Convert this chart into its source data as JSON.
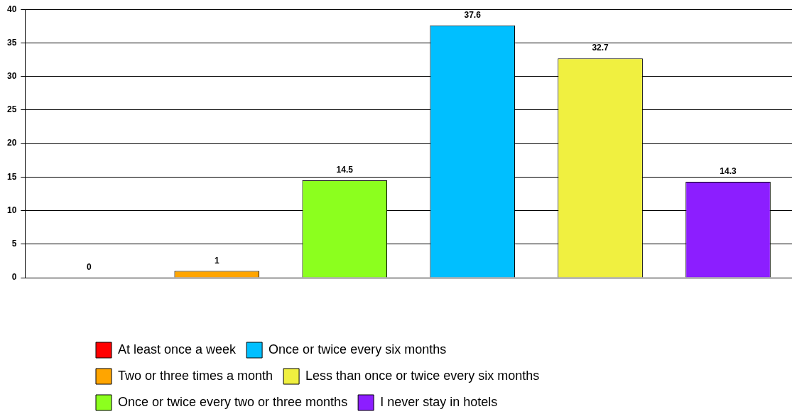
{
  "chart_data": {
    "type": "bar",
    "categories": [
      null,
      null,
      null,
      null,
      null,
      null
    ],
    "series": [
      {
        "name": "At least once a week",
        "color": "#ff0000",
        "values": [
          0,
          null,
          null,
          null,
          null,
          null
        ]
      },
      {
        "name": "Two or three times a month",
        "color": "#ffa500",
        "values": [
          null,
          1,
          null,
          null,
          null,
          null
        ]
      },
      {
        "name": "Once or twice every two or three months",
        "color": "#8cff1e",
        "values": [
          null,
          null,
          14.5,
          null,
          null,
          null
        ]
      },
      {
        "name": "Once or twice every six months",
        "color": "#00bfff",
        "values": [
          null,
          null,
          null,
          37.6,
          null,
          null
        ]
      },
      {
        "name": "Less than once or twice every six months",
        "color": "#f0f040",
        "values": [
          null,
          null,
          null,
          null,
          32.7,
          null
        ]
      },
      {
        "name": "I never stay in hotels",
        "color": "#8c1eff",
        "values": [
          null,
          null,
          null,
          null,
          null,
          14.3
        ]
      }
    ],
    "ylim": [
      0,
      40
    ],
    "yticks": [
      0,
      5,
      10,
      15,
      20,
      25,
      30,
      35,
      40
    ],
    "grid": "y",
    "tick_labels": "y",
    "data_labels": true,
    "legend": "bottom"
  }
}
